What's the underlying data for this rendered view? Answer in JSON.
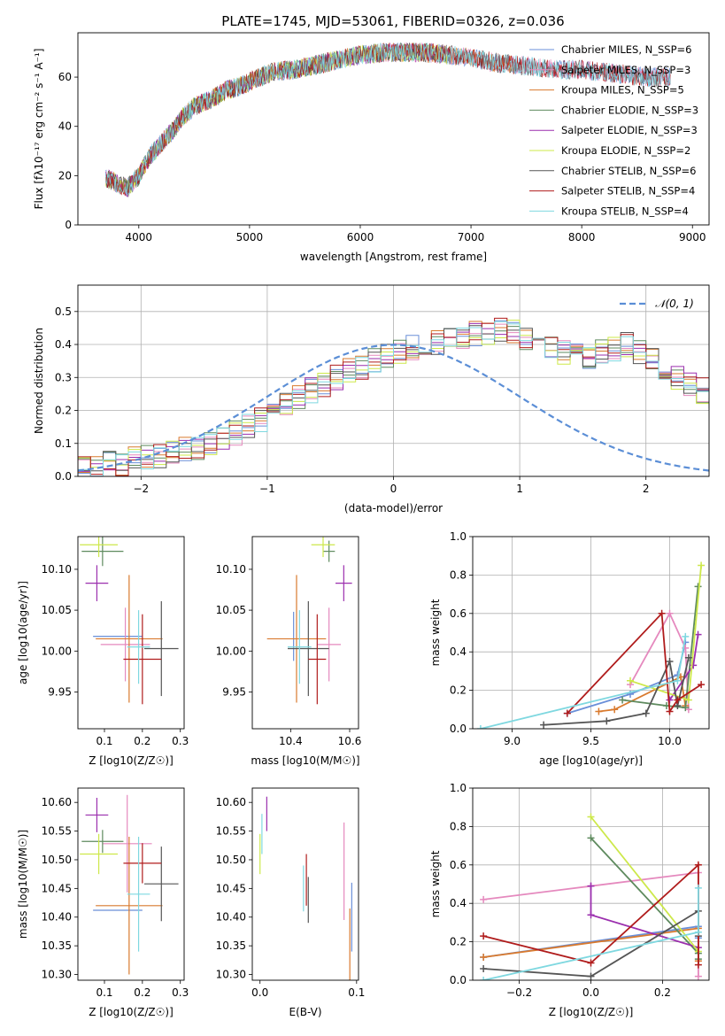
{
  "figure_title": "PLATE=1745, MJD=53061, FIBERID=0326, z=0.036",
  "chart_data": [
    {
      "id": "spectrum",
      "type": "line",
      "title": "PLATE=1745, MJD=53061, FIBERID=0326, z=0.036",
      "xlabel": "wavelength [Angstrom, rest frame]",
      "ylabel": "Flux [fλ10⁻¹⁷ erg cm⁻² s⁻¹ A⁻¹]",
      "xlim": [
        3450,
        9150
      ],
      "ylim": [
        0,
        78
      ],
      "xticks": [
        4000,
        5000,
        6000,
        7000,
        8000,
        9000
      ],
      "yticks": [
        0,
        20,
        40,
        60
      ],
      "grid": false,
      "legend_position": "top-right",
      "continuum_x": [
        3700,
        3800,
        3900,
        4000,
        4100,
        4200,
        4300,
        4400,
        4500,
        4600,
        4700,
        4800,
        4900,
        5000,
        5200,
        5400,
        5600,
        5800,
        6000,
        6200,
        6400,
        6600,
        6800,
        7000,
        7200,
        7400,
        7600,
        7800,
        8000,
        8200,
        8400,
        8600,
        8800
      ],
      "continuum_y": [
        19,
        17,
        15,
        20,
        28,
        33,
        38,
        44,
        48,
        50,
        52,
        55,
        56,
        58,
        62,
        63,
        65,
        67,
        69,
        70,
        70,
        70,
        69,
        68,
        66,
        65,
        64,
        63,
        63,
        62,
        61,
        60,
        60
      ],
      "series": [
        {
          "name": "Chabrier MILES, N_SSP=6",
          "color": "#6a8fd8",
          "end_x": 8800
        },
        {
          "name": "Salpeter MILES, N_SSP=3",
          "color": "#e589be",
          "end_x": 8800
        },
        {
          "name": "Kroupa MILES, N_SSP=5",
          "color": "#d97a2e",
          "end_x": 7400
        },
        {
          "name": "Chabrier ELODIE, N_SSP=3",
          "color": "#5e8a5e",
          "end_x": 6800
        },
        {
          "name": "Salpeter ELODIE, N_SSP=3",
          "color": "#9b2fae",
          "end_x": 6800
        },
        {
          "name": "Kroupa ELODIE, N_SSP=2",
          "color": "#cde84a",
          "end_x": 6800
        },
        {
          "name": "Chabrier STELIB, N_SSP=6",
          "color": "#555555",
          "end_x": 8800
        },
        {
          "name": "Salpeter STELIB, N_SSP=4",
          "color": "#b01c1c",
          "end_x": 8800
        },
        {
          "name": "Kroupa STELIB, N_SSP=4",
          "color": "#7fd8e0",
          "end_x": 8800
        }
      ]
    },
    {
      "id": "residual_hist",
      "type": "line",
      "xlabel": "(data-model)/error",
      "ylabel": "Normed distribution",
      "xlim": [
        -2.5,
        2.5
      ],
      "ylim": [
        0,
        0.58
      ],
      "xticks": [
        -2,
        -1,
        0,
        1,
        2
      ],
      "yticks": [
        0.0,
        0.1,
        0.2,
        0.3,
        0.4,
        0.5
      ],
      "grid": true,
      "legend": [
        {
          "name": "𝒩(0, 1)",
          "color": "#5b8ed6",
          "style": "dashed"
        }
      ],
      "legend_position": "top-right",
      "bin_edges_start": -2.5,
      "bin_width": 0.1,
      "base_histogram": [
        0.03,
        0.03,
        0.04,
        0.04,
        0.05,
        0.06,
        0.06,
        0.07,
        0.08,
        0.09,
        0.1,
        0.12,
        0.13,
        0.15,
        0.17,
        0.19,
        0.22,
        0.24,
        0.26,
        0.28,
        0.3,
        0.32,
        0.33,
        0.35,
        0.37,
        0.38,
        0.39,
        0.4,
        0.41,
        0.42,
        0.42,
        0.43,
        0.43,
        0.44,
        0.44,
        0.42,
        0.41,
        0.4,
        0.38,
        0.37,
        0.36,
        0.38,
        0.39,
        0.4,
        0.38,
        0.35,
        0.32,
        0.3,
        0.28,
        0.26,
        0.24,
        0.22,
        0.2,
        0.18,
        0.16,
        0.14,
        0.12,
        0.11,
        0.1,
        0.09,
        0.08,
        0.07,
        0.06,
        0.06,
        0.05,
        0.04,
        0.04,
        0.03,
        0.03,
        0.03
      ]
    },
    {
      "id": "age_vs_Z",
      "type": "scatter",
      "xlabel": "Z [log10(Z/Z☉)]",
      "ylabel": "age  [log10(age/yr)]",
      "xlim": [
        0.03,
        0.31
      ],
      "ylim": [
        9.905,
        10.14
      ],
      "xticks": [
        0.1,
        0.2,
        0.3
      ],
      "yticks": [
        9.95,
        10.0,
        10.05,
        10.1
      ],
      "grid": false,
      "points": [
        {
          "x": 0.135,
          "y": 10.018,
          "xerr": 0.065,
          "yerr": 0.0,
          "color": "#6a8fd8"
        },
        {
          "x": 0.155,
          "y": 10.008,
          "xerr": 0.065,
          "yerr": 0.045,
          "color": "#e589be"
        },
        {
          "x": 0.165,
          "y": 10.015,
          "xerr": 0.088,
          "yerr": 0.078,
          "color": "#d97a2e"
        },
        {
          "x": 0.095,
          "y": 10.122,
          "xerr": 0.055,
          "yerr": 0.018,
          "color": "#5e8a5e"
        },
        {
          "x": 0.08,
          "y": 10.083,
          "xerr": 0.03,
          "yerr": 0.022,
          "color": "#9b2fae"
        },
        {
          "x": 0.085,
          "y": 10.13,
          "xerr": 0.05,
          "yerr": 0.015,
          "color": "#cde84a"
        },
        {
          "x": 0.25,
          "y": 10.003,
          "xerr": 0.045,
          "yerr": 0.058,
          "color": "#555555"
        },
        {
          "x": 0.2,
          "y": 9.99,
          "xerr": 0.05,
          "yerr": 0.055,
          "color": "#b01c1c"
        },
        {
          "x": 0.19,
          "y": 10.005,
          "xerr": 0.03,
          "yerr": 0.045,
          "color": "#7fd8e0"
        }
      ]
    },
    {
      "id": "age_vs_mass",
      "type": "scatter",
      "xlabel": "mass [log10(M/M☉)]",
      "ylabel": "",
      "xlim": [
        10.27,
        10.63
      ],
      "ylim": [
        9.905,
        10.14
      ],
      "xticks": [
        10.4,
        10.6
      ],
      "yticks": [
        9.95,
        10.0,
        10.05,
        10.1
      ],
      "grid": false,
      "points": [
        {
          "x": 10.41,
          "y": 10.018,
          "xerr": 0.0,
          "yerr": 0.03,
          "color": "#6a8fd8"
        },
        {
          "x": 10.53,
          "y": 10.008,
          "xerr": 0.04,
          "yerr": 0.045,
          "color": "#e589be"
        },
        {
          "x": 10.42,
          "y": 10.015,
          "xerr": 0.1,
          "yerr": 0.078,
          "color": "#d97a2e"
        },
        {
          "x": 10.53,
          "y": 10.122,
          "xerr": 0.02,
          "yerr": 0.013,
          "color": "#5e8a5e"
        },
        {
          "x": 10.58,
          "y": 10.083,
          "xerr": 0.028,
          "yerr": 0.022,
          "color": "#9b2fae"
        },
        {
          "x": 10.51,
          "y": 10.13,
          "xerr": 0.04,
          "yerr": 0.015,
          "color": "#cde84a"
        },
        {
          "x": 10.46,
          "y": 10.003,
          "xerr": 0.07,
          "yerr": 0.058,
          "color": "#555555"
        },
        {
          "x": 10.49,
          "y": 9.99,
          "xerr": 0.03,
          "yerr": 0.055,
          "color": "#b01c1c"
        },
        {
          "x": 10.43,
          "y": 10.005,
          "xerr": 0.04,
          "yerr": 0.045,
          "color": "#7fd8e0"
        }
      ]
    },
    {
      "id": "weight_vs_age",
      "type": "line",
      "xlabel": "age  [log10(age/yr)]",
      "ylabel": "mass weight",
      "xlim": [
        8.75,
        10.25
      ],
      "ylim": [
        0.0,
        1.0
      ],
      "xticks": [
        9.0,
        9.5,
        10.0
      ],
      "yticks": [
        0.0,
        0.2,
        0.4,
        0.6,
        0.8,
        1.0
      ],
      "grid": true,
      "series": [
        {
          "color": "#6a8fd8",
          "x": [
            9.35,
            9.75,
            10.05,
            10.1
          ],
          "y": [
            0.08,
            0.18,
            0.28,
            0.45
          ]
        },
        {
          "color": "#e589be",
          "x": [
            9.75,
            10.0,
            10.1,
            10.12
          ],
          "y": [
            0.23,
            0.6,
            0.42,
            0.1
          ]
        },
        {
          "color": "#d97a2e",
          "x": [
            9.55,
            9.65,
            10.07,
            10.1
          ],
          "y": [
            0.09,
            0.1,
            0.27,
            0.12
          ]
        },
        {
          "color": "#5e8a5e",
          "x": [
            9.7,
            9.98,
            10.1,
            10.18
          ],
          "y": [
            0.15,
            0.12,
            0.11,
            0.74
          ]
        },
        {
          "color": "#9b2fae",
          "x": [
            10.0,
            10.15,
            10.18
          ],
          "y": [
            0.15,
            0.33,
            0.49
          ]
        },
        {
          "color": "#cde84a",
          "x": [
            9.75,
            10.12,
            10.2
          ],
          "y": [
            0.25,
            0.15,
            0.85
          ]
        },
        {
          "color": "#555555",
          "x": [
            9.2,
            9.6,
            9.85,
            10.0,
            10.05,
            10.12
          ],
          "y": [
            0.02,
            0.04,
            0.08,
            0.35,
            0.12,
            0.37
          ]
        },
        {
          "color": "#b01c1c",
          "x": [
            9.35,
            9.95,
            10.0,
            10.05,
            10.2
          ],
          "y": [
            0.08,
            0.6,
            0.09,
            0.15,
            0.23
          ]
        },
        {
          "color": "#7fd8e0",
          "x": [
            8.8,
            10.05,
            10.1
          ],
          "y": [
            0.0,
            0.25,
            0.48
          ]
        }
      ]
    },
    {
      "id": "mass_vs_Z",
      "type": "scatter",
      "xlabel": "Z [log10(Z/Z☉)]",
      "ylabel": "mass [log10(M/M☉)]",
      "xlim": [
        0.03,
        0.31
      ],
      "ylim": [
        10.29,
        10.625
      ],
      "xticks": [
        0.1,
        0.2,
        0.3
      ],
      "yticks": [
        10.3,
        10.35,
        10.4,
        10.45,
        10.5,
        10.55,
        10.6
      ],
      "grid": false,
      "points": [
        {
          "x": 0.135,
          "y": 10.412,
          "xerr": 0.065,
          "yerr": 0.0,
          "color": "#6a8fd8"
        },
        {
          "x": 0.16,
          "y": 10.528,
          "xerr": 0.065,
          "yerr": 0.085,
          "color": "#e589be"
        },
        {
          "x": 0.165,
          "y": 10.42,
          "xerr": 0.088,
          "yerr": 0.12,
          "color": "#d97a2e"
        },
        {
          "x": 0.095,
          "y": 10.532,
          "xerr": 0.055,
          "yerr": 0.02,
          "color": "#5e8a5e"
        },
        {
          "x": 0.08,
          "y": 10.578,
          "xerr": 0.03,
          "yerr": 0.03,
          "color": "#9b2fae"
        },
        {
          "x": 0.085,
          "y": 10.51,
          "xerr": 0.05,
          "yerr": 0.035,
          "color": "#cde84a"
        },
        {
          "x": 0.25,
          "y": 10.458,
          "xerr": 0.045,
          "yerr": 0.065,
          "color": "#555555"
        },
        {
          "x": 0.2,
          "y": 10.494,
          "xerr": 0.05,
          "yerr": 0.035,
          "color": "#b01c1c"
        },
        {
          "x": 0.19,
          "y": 10.44,
          "xerr": 0.03,
          "yerr": 0.1,
          "color": "#7fd8e0"
        }
      ]
    },
    {
      "id": "mass_vs_ebv",
      "type": "scatter",
      "xlabel": "E(B-V)",
      "ylabel": "",
      "xlim": [
        -0.008,
        0.102
      ],
      "ylim": [
        10.29,
        10.625
      ],
      "xticks": [
        0.0,
        0.1
      ],
      "yticks": [
        10.3,
        10.35,
        10.4,
        10.45,
        10.5,
        10.55,
        10.6
      ],
      "grid": false,
      "points": [
        {
          "x": 0.002,
          "y": 10.545,
          "xerr": 0.0,
          "yerr": 0.035,
          "color": "#7fd8e0"
        },
        {
          "x": 0.0,
          "y": 10.51,
          "xerr": 0.0,
          "yerr": 0.035,
          "color": "#cde84a"
        },
        {
          "x": 0.007,
          "y": 10.58,
          "xerr": 0.0,
          "yerr": 0.03,
          "color": "#9b2fae"
        },
        {
          "x": 0.045,
          "y": 10.45,
          "xerr": 0.0,
          "yerr": 0.04,
          "color": "#7fd8e0"
        },
        {
          "x": 0.048,
          "y": 10.465,
          "xerr": 0.0,
          "yerr": 0.045,
          "color": "#b01c1c"
        },
        {
          "x": 0.05,
          "y": 10.43,
          "xerr": 0.0,
          "yerr": 0.04,
          "color": "#555555"
        },
        {
          "x": 0.087,
          "y": 10.48,
          "xerr": 0.0,
          "yerr": 0.085,
          "color": "#e589be"
        },
        {
          "x": 0.093,
          "y": 10.345,
          "xerr": 0.0,
          "yerr": 0.07,
          "color": "#d97a2e"
        },
        {
          "x": 0.095,
          "y": 10.4,
          "xerr": 0.0,
          "yerr": 0.06,
          "color": "#6a8fd8"
        }
      ]
    },
    {
      "id": "weight_vs_Z",
      "type": "line",
      "xlabel": "Z [log10(Z/Z☉)]",
      "ylabel": "mass weight",
      "xlim": [
        -0.33,
        0.33
      ],
      "ylim": [
        0.0,
        1.0
      ],
      "xticks": [
        -0.2,
        0.0,
        0.2
      ],
      "yticks": [
        0.0,
        0.2,
        0.4,
        0.6,
        0.8,
        1.0
      ],
      "grid": true,
      "series": [
        {
          "color": "#6a8fd8",
          "x": [
            -0.3,
            0.3,
            0.3
          ],
          "y": [
            0.12,
            0.28,
            0.22
          ]
        },
        {
          "color": "#e589be",
          "x": [
            -0.3,
            0.0,
            0.3,
            0.3
          ],
          "y": [
            0.42,
            0.49,
            0.56,
            0.02
          ]
        },
        {
          "color": "#d97a2e",
          "x": [
            -0.3,
            0.3,
            0.3
          ],
          "y": [
            0.12,
            0.27,
            0.1
          ]
        },
        {
          "color": "#5e8a5e",
          "x": [
            0.0,
            0.3,
            0.3
          ],
          "y": [
            0.74,
            0.14,
            0.11
          ]
        },
        {
          "color": "#9b2fae",
          "x": [
            0.0,
            0.0,
            0.3
          ],
          "y": [
            0.49,
            0.34,
            0.17
          ]
        },
        {
          "color": "#cde84a",
          "x": [
            0.0,
            0.3
          ],
          "y": [
            0.85,
            0.15
          ]
        },
        {
          "color": "#555555",
          "x": [
            -0.3,
            0.0,
            0.3,
            0.3
          ],
          "y": [
            0.06,
            0.02,
            0.36,
            0.23
          ]
        },
        {
          "color": "#b01c1c",
          "x": [
            -0.3,
            0.0,
            0.3,
            0.3
          ],
          "y": [
            0.23,
            0.09,
            0.6,
            0.08
          ]
        },
        {
          "color": "#7fd8e0",
          "x": [
            -0.3,
            0.3,
            0.3
          ],
          "y": [
            0.0,
            0.25,
            0.48
          ]
        }
      ]
    }
  ]
}
